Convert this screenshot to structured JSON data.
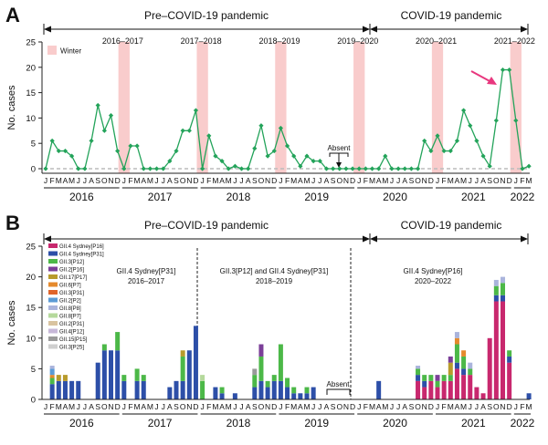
{
  "panel_a": {
    "label": "A",
    "periods": [
      "Pre–COVID-19 pandemic",
      "COVID-19 pandemic"
    ],
    "legend_winter": "Winter",
    "seasons": [
      "2016–2017",
      "2017–2018",
      "2018–2019",
      "2019–2020",
      "2020–2021",
      "2021–2022"
    ],
    "absent_label": "Absent"
  },
  "panel_b": {
    "label": "B",
    "periods": [
      "Pre–COVID-19 pandemic",
      "COVID-19 pandemic"
    ],
    "annotations": [
      {
        "line1": "GII.4 Sydney[P31]",
        "line2": "2016–2017"
      },
      {
        "line1": "GII.3[P12] and GII.4 Sydney[P31]",
        "line2": "2018–2019"
      },
      {
        "line1": "GII.4 Sydney[P16]",
        "line2": "2020–2022"
      }
    ],
    "absent_label": "Absent"
  },
  "x_axis": {
    "months": [
      "J",
      "F",
      "M",
      "A",
      "M",
      "J",
      "J",
      "A",
      "S",
      "O",
      "N",
      "D",
      "J",
      "F",
      "M",
      "A",
      "M",
      "J",
      "J",
      "A",
      "S",
      "O",
      "N",
      "D",
      "J",
      "F",
      "M",
      "A",
      "M",
      "J",
      "J",
      "A",
      "S",
      "O",
      "N",
      "D",
      "J",
      "F",
      "M",
      "A",
      "M",
      "J",
      "J",
      "A",
      "S",
      "O",
      "N",
      "D",
      "J",
      "F",
      "M",
      "A",
      "M",
      "J",
      "J",
      "A",
      "S",
      "O",
      "N",
      "D",
      "J",
      "F",
      "M",
      "A",
      "M",
      "J",
      "J",
      "A",
      "S",
      "O",
      "N",
      "D",
      "J",
      "F",
      "M"
    ],
    "years": [
      "2016",
      "2017",
      "2018",
      "2019",
      "2020",
      "2021",
      "2022"
    ]
  },
  "chart_data": [
    {
      "type": "line",
      "title": "",
      "xlabel": "",
      "ylabel": "No. cases",
      "ylim": [
        -2,
        25
      ],
      "yticks": [
        0,
        5,
        10,
        15,
        20,
        25
      ],
      "series": [
        {
          "name": "Norovirus cases",
          "color": "#23a35a",
          "values": [
            0,
            5.5,
            3.5,
            3.5,
            2.5,
            0,
            0,
            5.5,
            12.5,
            7.5,
            10.5,
            3.5,
            0,
            4.5,
            4.5,
            0,
            0,
            0,
            0,
            1.5,
            3.5,
            7.5,
            7.5,
            11.5,
            0,
            6.5,
            2.5,
            1.5,
            0,
            0.5,
            0,
            0,
            4,
            8.5,
            2.5,
            3.5,
            8,
            4.5,
            2.5,
            0.5,
            2.5,
            1.5,
            1.5,
            0,
            0,
            0,
            0,
            0,
            0,
            0,
            0,
            0,
            2.5,
            0,
            0,
            0,
            0,
            0,
            5.5,
            3.5,
            6.5,
            3.5,
            3.5,
            5.5,
            11.5,
            8.5,
            5.5,
            2.5,
            0.5,
            9.5,
            19.5,
            19.5,
            9.5,
            0,
            0.5
          ]
        }
      ],
      "absent_months_index": [
        44,
        47
      ],
      "winter_months_index": [
        [
          11,
          13
        ],
        [
          23,
          25
        ],
        [
          35,
          37
        ],
        [
          47,
          49
        ],
        [
          59,
          61
        ],
        [
          71,
          73
        ]
      ]
    },
    {
      "type": "bar",
      "stacked": true,
      "xlabel": "",
      "ylabel": "No. cases",
      "ylim": [
        0,
        25
      ],
      "yticks": [
        0,
        5,
        10,
        15,
        20,
        25
      ],
      "legend": [
        {
          "name": "GII.4 Sydney[P16]",
          "color": "#c8286e"
        },
        {
          "name": "GII.4 Sydney[P31]",
          "color": "#2d4fa8"
        },
        {
          "name": "GII.3[P12]",
          "color": "#4cb848"
        },
        {
          "name": "GII.2[P16]",
          "color": "#7b3f98"
        },
        {
          "name": "GII.17[P17]",
          "color": "#b89b2c"
        },
        {
          "name": "GII.6[P7]",
          "color": "#e58a2d"
        },
        {
          "name": "GII.3[P31]",
          "color": "#e0652b"
        },
        {
          "name": "GII.2[P2]",
          "color": "#5b9bd5"
        },
        {
          "name": "GII.8[P8]",
          "color": "#aab4dc"
        },
        {
          "name": "GII.8[P7]",
          "color": "#b5d99c"
        },
        {
          "name": "GII.2[P31]",
          "color": "#d9c3a0"
        },
        {
          "name": "GII.4[P12]",
          "color": "#c7b8d8"
        },
        {
          "name": "GII.15[P15]",
          "color": "#9a9a9a"
        },
        {
          "name": "GII.3[P25]",
          "color": "#cfcfcf"
        }
      ],
      "totals": [
        0,
        5.5,
        4,
        4,
        3,
        3,
        0,
        0,
        6,
        9,
        8,
        11,
        4,
        0,
        5,
        4,
        0,
        0,
        0,
        2,
        3,
        8,
        8,
        12,
        4,
        0,
        2,
        2,
        0,
        1,
        0,
        0,
        5,
        9,
        3,
        4,
        9,
        3.5,
        2,
        1,
        2,
        2,
        0,
        0,
        0,
        0,
        0,
        0,
        0,
        0,
        0,
        3,
        0,
        0,
        0,
        0,
        0,
        5.5,
        4,
        4,
        4,
        4,
        7,
        11,
        8,
        6,
        2,
        1,
        10,
        19.5,
        19.5,
        8,
        0,
        0,
        1
      ],
      "stacks": [
        [],
        [
          {
            "s": "GII.4 Sydney[P31]",
            "v": 2.5
          },
          {
            "s": "GII.3[P12]",
            "v": 1
          },
          {
            "s": "GII.6[P7]",
            "v": 0.5
          },
          {
            "s": "GII.2[P2]",
            "v": 1
          },
          {
            "s": "GII.8[P8]",
            "v": 0.5
          }
        ],
        [
          {
            "s": "GII.4 Sydney[P31]",
            "v": 3
          },
          {
            "s": "GII.17[P17]",
            "v": 1
          }
        ],
        [
          {
            "s": "GII.4 Sydney[P31]",
            "v": 3
          },
          {
            "s": "GII.17[P17]",
            "v": 1
          }
        ],
        [
          {
            "s": "GII.4 Sydney[P31]",
            "v": 3
          }
        ],
        [
          {
            "s": "GII.4 Sydney[P31]",
            "v": 3
          }
        ],
        [],
        [],
        [
          {
            "s": "GII.4 Sydney[P31]",
            "v": 6
          }
        ],
        [
          {
            "s": "GII.4 Sydney[P31]",
            "v": 8
          },
          {
            "s": "GII.3[P12]",
            "v": 1
          }
        ],
        [
          {
            "s": "GII.4 Sydney[P31]",
            "v": 8
          }
        ],
        [
          {
            "s": "GII.4 Sydney[P31]",
            "v": 8
          },
          {
            "s": "GII.3[P12]",
            "v": 3
          }
        ],
        [
          {
            "s": "GII.4 Sydney[P31]",
            "v": 3
          },
          {
            "s": "GII.3[P12]",
            "v": 1
          }
        ],
        [],
        [
          {
            "s": "GII.4 Sydney[P31]",
            "v": 3
          },
          {
            "s": "GII.3[P12]",
            "v": 2
          }
        ],
        [
          {
            "s": "GII.4 Sydney[P31]",
            "v": 3
          },
          {
            "s": "GII.3[P12]",
            "v": 1
          }
        ],
        [],
        [],
        [],
        [
          {
            "s": "GII.4 Sydney[P31]",
            "v": 2
          }
        ],
        [
          {
            "s": "GII.4 Sydney[P31]",
            "v": 3
          }
        ],
        [
          {
            "s": "GII.4 Sydney[P31]",
            "v": 3
          },
          {
            "s": "GII.3[P12]",
            "v": 4
          },
          {
            "s": "GII.17[P17]",
            "v": 1
          }
        ],
        [
          {
            "s": "GII.4 Sydney[P31]",
            "v": 8
          }
        ],
        [
          {
            "s": "GII.4 Sydney[P31]",
            "v": 12
          }
        ],
        [
          {
            "s": "GII.3[P12]",
            "v": 3
          },
          {
            "s": "GII.8[P7]",
            "v": 1
          }
        ],
        [],
        [
          {
            "s": "GII.4 Sydney[P31]",
            "v": 2
          }
        ],
        [
          {
            "s": "GII.4 Sydney[P31]",
            "v": 1
          },
          {
            "s": "GII.3[P12]",
            "v": 1
          }
        ],
        [],
        [
          {
            "s": "GII.4 Sydney[P31]",
            "v": 1
          }
        ],
        [],
        [],
        [
          {
            "s": "GII.4 Sydney[P31]",
            "v": 2
          },
          {
            "s": "GII.3[P12]",
            "v": 2
          },
          {
            "s": "GII.15[P15]",
            "v": 1
          }
        ],
        [
          {
            "s": "GII.4 Sydney[P31]",
            "v": 3
          },
          {
            "s": "GII.3[P12]",
            "v": 4
          },
          {
            "s": "GII.2[P16]",
            "v": 2
          }
        ],
        [
          {
            "s": "GII.4 Sydney[P31]",
            "v": 2
          },
          {
            "s": "GII.3[P12]",
            "v": 1
          }
        ],
        [
          {
            "s": "GII.4 Sydney[P31]",
            "v": 3
          },
          {
            "s": "GII.3[P12]",
            "v": 1
          }
        ],
        [
          {
            "s": "GII.4 Sydney[P31]",
            "v": 3
          },
          {
            "s": "GII.3[P12]",
            "v": 6
          }
        ],
        [
          {
            "s": "GII.4 Sydney[P31]",
            "v": 2
          },
          {
            "s": "GII.3[P12]",
            "v": 1.5
          }
        ],
        [
          {
            "s": "GII.4 Sydney[P31]",
            "v": 1
          },
          {
            "s": "GII.3[P12]",
            "v": 1
          }
        ],
        [
          {
            "s": "GII.4 Sydney[P31]",
            "v": 1
          }
        ],
        [
          {
            "s": "GII.4 Sydney[P31]",
            "v": 1
          },
          {
            "s": "GII.3[P12]",
            "v": 1
          }
        ],
        [
          {
            "s": "GII.4 Sydney[P31]",
            "v": 2
          }
        ],
        [],
        [],
        [],
        [],
        [],
        [],
        [],
        [],
        [],
        [
          {
            "s": "GII.4 Sydney[P31]",
            "v": 3
          }
        ],
        [],
        [],
        [],
        [],
        [],
        [
          {
            "s": "GII.4 Sydney[P16]",
            "v": 3
          },
          {
            "s": "GII.4 Sydney[P31]",
            "v": 1
          },
          {
            "s": "GII.3[P12]",
            "v": 1
          },
          {
            "s": "GII.8[P8]",
            "v": 0.5
          }
        ],
        [
          {
            "s": "GII.4 Sydney[P16]",
            "v": 2
          },
          {
            "s": "GII.4 Sydney[P31]",
            "v": 1
          },
          {
            "s": "GII.3[P12]",
            "v": 1
          }
        ],
        [
          {
            "s": "GII.4 Sydney[P16]",
            "v": 3
          },
          {
            "s": "GII.3[P12]",
            "v": 1
          }
        ],
        [
          {
            "s": "GII.4 Sydney[P16]",
            "v": 2
          },
          {
            "s": "GII.3[P12]",
            "v": 1
          },
          {
            "s": "GII.2[P16]",
            "v": 1
          }
        ],
        [
          {
            "s": "GII.4 Sydney[P16]",
            "v": 3
          },
          {
            "s": "GII.3[P12]",
            "v": 1
          }
        ],
        [
          {
            "s": "GII.4 Sydney[P16]",
            "v": 3
          },
          {
            "s": "GII.3[P12]",
            "v": 1
          },
          {
            "s": "GII.17[P17]",
            "v": 2
          },
          {
            "s": "GII.2[P16]",
            "v": 1
          }
        ],
        [
          {
            "s": "GII.4 Sydney[P16]",
            "v": 5
          },
          {
            "s": "GII.4 Sydney[P31]",
            "v": 1
          },
          {
            "s": "GII.3[P12]",
            "v": 3
          },
          {
            "s": "GII.6[P7]",
            "v": 1
          },
          {
            "s": "GII.8[P8]",
            "v": 1
          }
        ],
        [
          {
            "s": "GII.4 Sydney[P16]",
            "v": 4
          },
          {
            "s": "GII.4 Sydney[P31]",
            "v": 1
          },
          {
            "s": "GII.3[P12]",
            "v": 2
          },
          {
            "s": "GII.6[P7]",
            "v": 1
          }
        ],
        [
          {
            "s": "GII.4 Sydney[P16]",
            "v": 4
          },
          {
            "s": "GII.3[P12]",
            "v": 1
          },
          {
            "s": "GII.8[P8]",
            "v": 1
          }
        ],
        [
          {
            "s": "GII.4 Sydney[P16]",
            "v": 2
          }
        ],
        [
          {
            "s": "GII.4 Sydney[P16]",
            "v": 1
          }
        ],
        [
          {
            "s": "GII.4 Sydney[P16]",
            "v": 10
          }
        ],
        [
          {
            "s": "GII.4 Sydney[P16]",
            "v": 16
          },
          {
            "s": "GII.4 Sydney[P31]",
            "v": 1
          },
          {
            "s": "GII.3[P12]",
            "v": 1.5
          },
          {
            "s": "GII.8[P8]",
            "v": 1
          }
        ],
        [
          {
            "s": "GII.4 Sydney[P16]",
            "v": 16
          },
          {
            "s": "GII.4 Sydney[P31]",
            "v": 1
          },
          {
            "s": "GII.3[P12]",
            "v": 2
          },
          {
            "s": "GII.8[P8]",
            "v": 1
          }
        ],
        [
          {
            "s": "GII.4 Sydney[P16]",
            "v": 6
          },
          {
            "s": "GII.4 Sydney[P31]",
            "v": 1
          },
          {
            "s": "GII.3[P12]",
            "v": 1
          }
        ],
        [],
        [],
        [
          {
            "s": "GII.4 Sydney[P31]",
            "v": 1
          }
        ]
      ]
    }
  ]
}
